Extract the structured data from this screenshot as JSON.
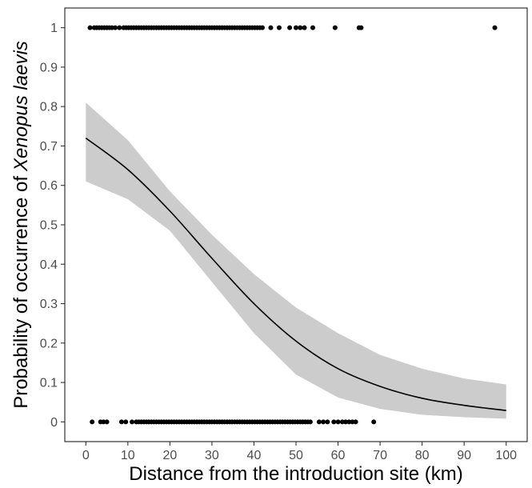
{
  "chart_data": {
    "type": "scatter",
    "xlabel": "Distance from the introduction site (km)",
    "ylabel_plain": "Probability of occurrence of",
    "ylabel_italic": "Xenopus laevis",
    "xlim": [
      -5,
      105
    ],
    "ylim": [
      -0.05,
      1.05
    ],
    "x_ticks": [
      "0",
      "10",
      "20",
      "30",
      "40",
      "50",
      "60",
      "70",
      "80",
      "90",
      "100"
    ],
    "y_ticks": [
      "0",
      "0.1",
      "0.2",
      "0.3",
      "0.4",
      "0.5",
      "0.6",
      "0.7",
      "0.8",
      "0.9",
      "1"
    ],
    "grid": false,
    "colors": {
      "points": "#000000",
      "fit_line": "#000000",
      "confidence_band": "#cccccc",
      "panel_border": "#333333"
    },
    "series": [
      {
        "type": "scatter",
        "y": 1,
        "x": [
          1,
          2,
          2.6,
          3.2,
          3.8,
          4.4,
          5,
          5.6,
          6.2,
          7,
          8,
          9,
          9.6,
          10.2,
          10.8,
          11.4,
          12,
          12.6,
          13.2,
          13.8,
          14.4,
          15,
          15.6,
          16.2,
          16.8,
          17.4,
          18,
          18.6,
          19.2,
          19.8,
          20.4,
          21,
          21.6,
          22.2,
          22.8,
          23.4,
          24,
          24.6,
          25.2,
          25.8,
          26.4,
          27,
          27.6,
          28.2,
          28.8,
          29.4,
          30,
          30.6,
          31.2,
          31.8,
          32.4,
          33,
          33.6,
          34.2,
          34.8,
          35.4,
          36,
          36.6,
          37.2,
          37.8,
          38.4,
          39,
          39.6,
          40.2,
          40.8,
          41.4,
          42,
          44,
          46,
          48.5,
          50,
          51,
          52,
          54,
          59.3,
          65,
          65.5,
          97.3
        ]
      },
      {
        "type": "scatter",
        "y": 0,
        "x": [
          1.5,
          3.5,
          4.2,
          5,
          8.5,
          9.5,
          11,
          12,
          12.6,
          13.2,
          13.8,
          14.4,
          15,
          15.6,
          16.2,
          16.8,
          17.4,
          18,
          18.6,
          19.2,
          19.8,
          20.4,
          21,
          21.6,
          22.2,
          22.8,
          23.4,
          24,
          24.6,
          25.2,
          25.8,
          26.4,
          27,
          27.6,
          28.2,
          28.8,
          29.4,
          30,
          30.6,
          31.2,
          31.8,
          32.4,
          33,
          33.6,
          34.2,
          34.8,
          35.4,
          36,
          36.6,
          37.2,
          37.8,
          38.4,
          39,
          39.6,
          40.2,
          40.8,
          41.4,
          42,
          42.6,
          43.2,
          43.8,
          44.4,
          45,
          45.6,
          46.2,
          46.8,
          47.4,
          48,
          48.6,
          49.2,
          49.8,
          50.4,
          51,
          51.6,
          52.2,
          52.8,
          53.4,
          55.5,
          56.5,
          57.5,
          59,
          60,
          61,
          61.8,
          62.6,
          63.4,
          64.2,
          68.5
        ]
      },
      {
        "type": "line",
        "x": [
          0,
          10,
          20,
          30,
          40,
          50,
          60,
          70,
          80,
          90,
          100
        ],
        "y": [
          0.72,
          0.64,
          0.535,
          0.415,
          0.3,
          0.205,
          0.135,
          0.09,
          0.06,
          0.042,
          0.029
        ]
      },
      {
        "type": "area",
        "x": [
          0,
          10,
          20,
          30,
          40,
          50,
          60,
          70,
          80,
          90,
          100
        ],
        "y_low": [
          0.61,
          0.565,
          0.485,
          0.355,
          0.225,
          0.12,
          0.062,
          0.033,
          0.018,
          0.012,
          0.008
        ],
        "y_high": [
          0.81,
          0.715,
          0.585,
          0.475,
          0.375,
          0.29,
          0.225,
          0.17,
          0.135,
          0.11,
          0.095
        ]
      }
    ]
  }
}
